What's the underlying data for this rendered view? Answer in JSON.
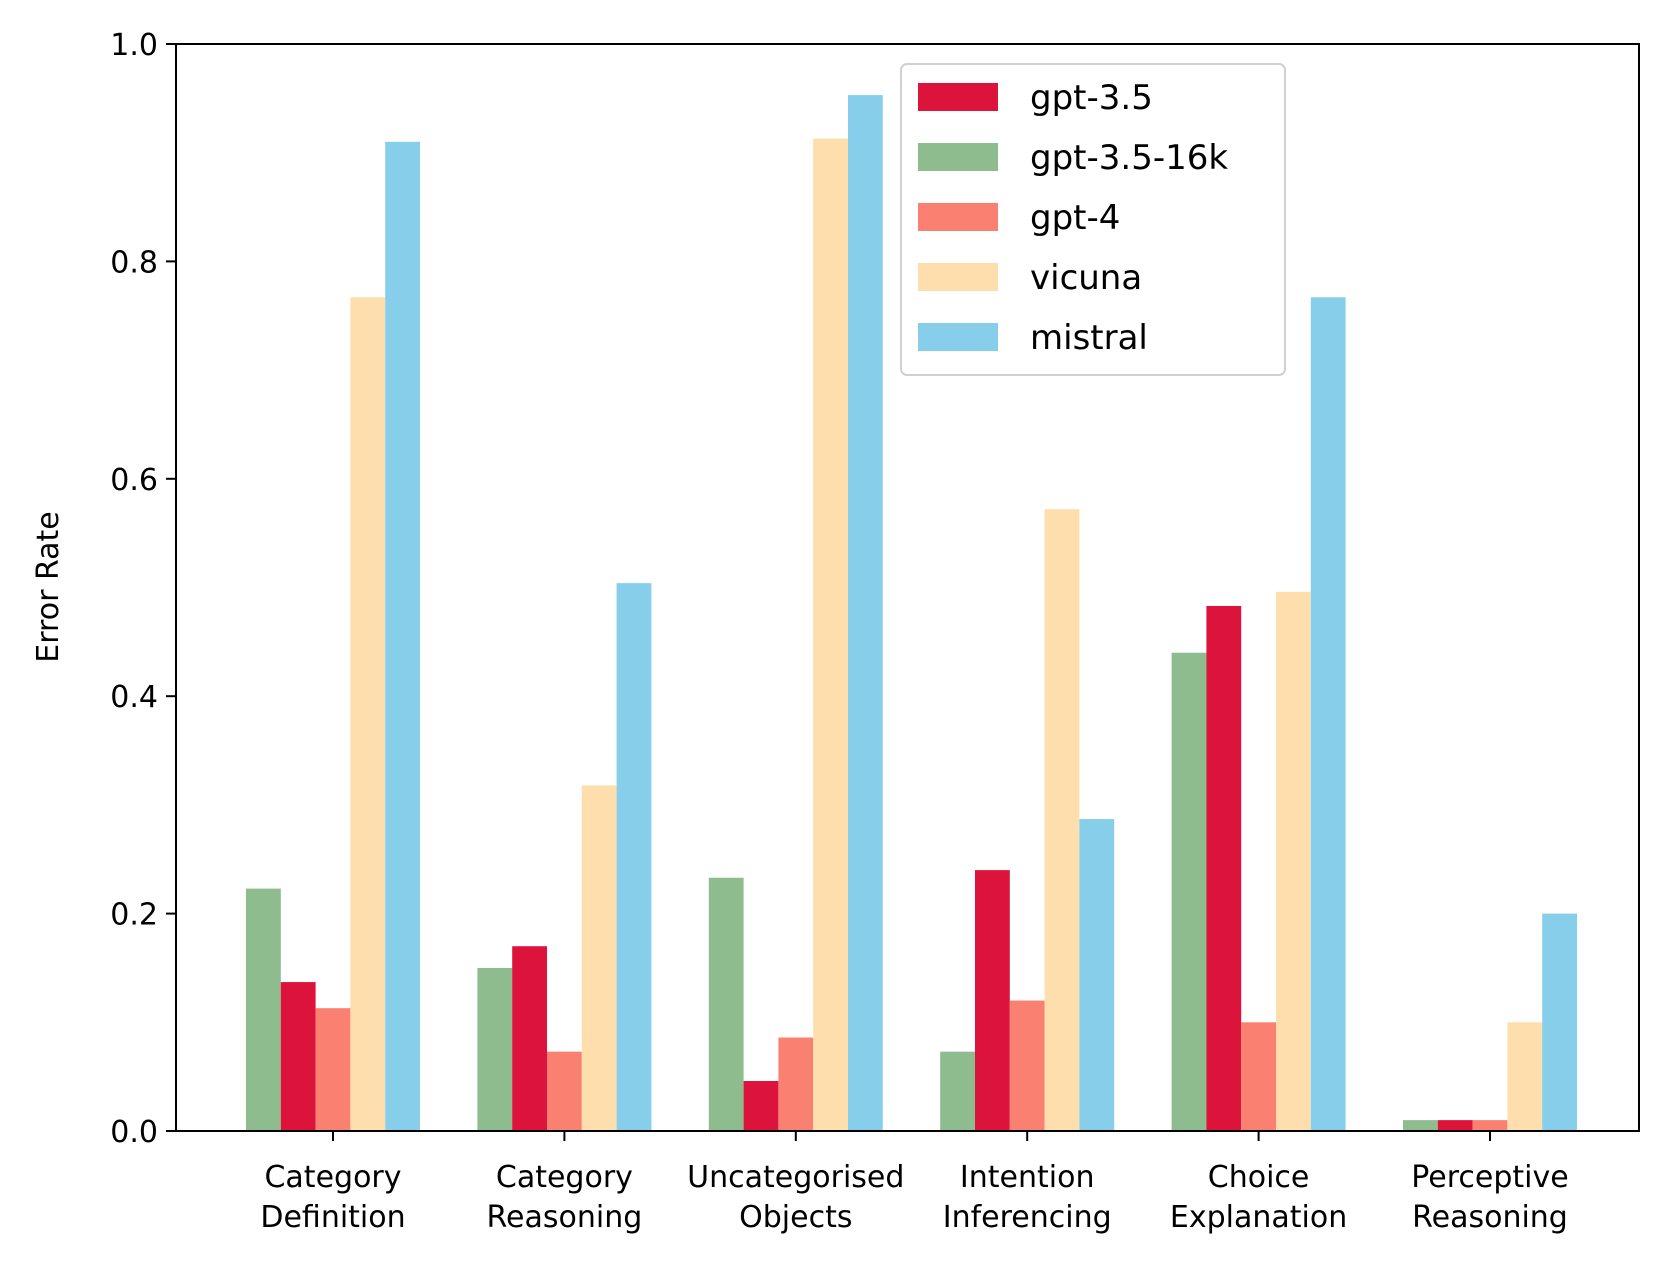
{
  "chart_data": {
    "type": "bar",
    "title": "",
    "xlabel": "",
    "ylabel": "Error Rate",
    "ylim": [
      0,
      1.0
    ],
    "yticks": [
      "0.0",
      "0.2",
      "0.4",
      "0.6",
      "0.8",
      "1.0"
    ],
    "categories": [
      [
        "Category",
        "Definition"
      ],
      [
        "Category",
        "Reasoning"
      ],
      [
        "Uncategorised",
        "Objects"
      ],
      [
        "Intention",
        "Inferencing"
      ],
      [
        "Choice",
        "Explanation"
      ],
      [
        "Perceptive",
        "Reasoning"
      ]
    ],
    "bar_order": [
      "gpt-3.5-16k",
      "gpt-3.5",
      "gpt-4",
      "vicuna",
      "mistral"
    ],
    "series": [
      {
        "name": "gpt-3.5",
        "color": "#dc143c",
        "values": [
          0.137,
          0.17,
          0.046,
          0.24,
          0.483,
          0.01
        ]
      },
      {
        "name": "gpt-3.5-16k",
        "color": "#8fbc8f",
        "values": [
          0.223,
          0.15,
          0.233,
          0.073,
          0.44,
          0.01
        ]
      },
      {
        "name": "gpt-4",
        "color": "#fa8072",
        "values": [
          0.113,
          0.073,
          0.086,
          0.12,
          0.1,
          0.01
        ]
      },
      {
        "name": "vicuna",
        "color": "#ffdead",
        "values": [
          0.767,
          0.318,
          0.913,
          0.572,
          0.496,
          0.1
        ]
      },
      {
        "name": "mistral",
        "color": "#87ceeb",
        "values": [
          0.91,
          0.504,
          0.953,
          0.287,
          0.767,
          0.2
        ]
      }
    ],
    "legend": {
      "position": "upper-center",
      "entries": [
        "gpt-3.5",
        "gpt-3.5-16k",
        "gpt-4",
        "vicuna",
        "mistral"
      ]
    },
    "grid": false
  }
}
